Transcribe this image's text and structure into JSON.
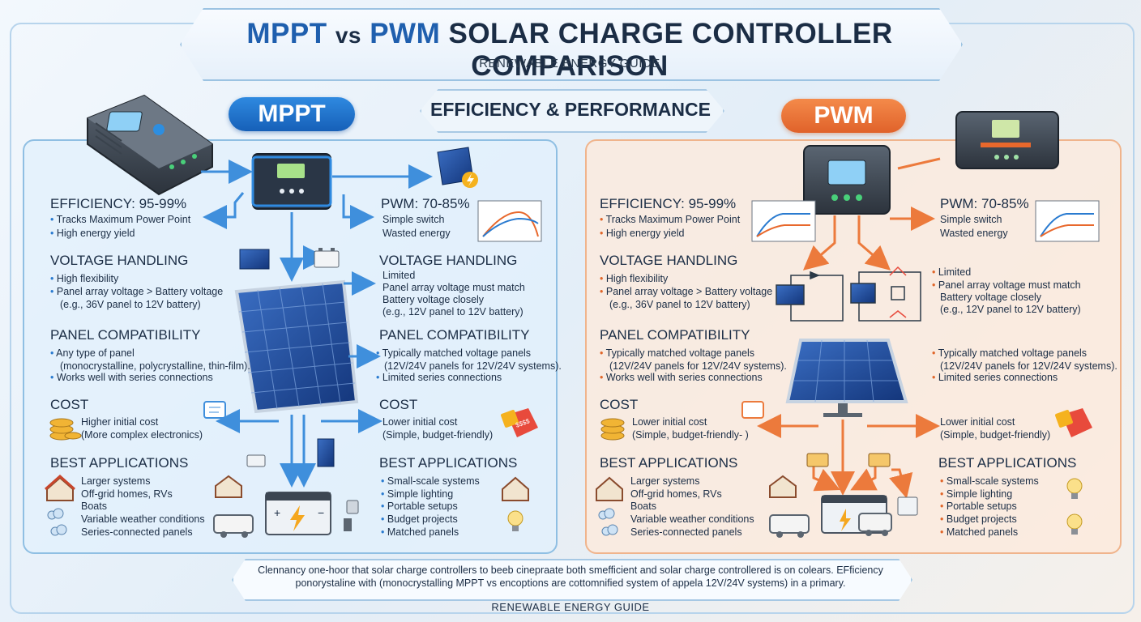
{
  "header": {
    "title_mppt": "MPPT",
    "title_vs": "vs",
    "title_pwm": "PWM",
    "title_rest": "SOLAR CHARGE CONTROLLER COMPARISON",
    "subtitle": "RENEWABLE ENERGY GUIDE"
  },
  "badges": {
    "mppt": "MPPT",
    "pwm": "PWM"
  },
  "banner": "EFFICIENCY & PERFORMANCE",
  "mppt_side": {
    "left": {
      "efficiency_title": "EFFICIENCY: 95-99%",
      "efficiency_items": [
        "Tracks Maximum Power Point",
        "High energy yield"
      ],
      "voltage_title": "VOLTAGE HANDLING",
      "voltage_items": [
        "High flexibility",
        "Panel array voltage > Battery voltage",
        "(e.g., 36V panel to 12V battery)"
      ],
      "panel_title": "PANEL COMPATIBILITY",
      "panel_items": [
        "Any type of panel",
        "(monocrystalline, polycrystalline, thin-film).",
        "Works well with series connections"
      ],
      "cost_title": "COST",
      "cost_items": [
        "Higher initial cost",
        "(More complex electronics)"
      ],
      "apps_title": "BEST APPLICATIONS",
      "apps_items": [
        "Larger systems",
        "Off-grid homes, RVs",
        "Boats",
        "Variable weather conditions",
        "Series-connected panels"
      ]
    },
    "right": {
      "efficiency_title": "PWM: 70-85%",
      "efficiency_items": [
        "Simple switch",
        "Wasted energy"
      ],
      "voltage_title": "VOLTAGE HANDLING",
      "voltage_items": [
        "Limited",
        "Panel array voltage must match",
        "Battery voltage closely",
        "(e.g., 12V panel to 12V battery)"
      ],
      "panel_title": "PANEL COMPATIBILITY",
      "panel_items": [
        "Typically matched voltage panels",
        "(12V/24V panels for 12V/24V systems).",
        "Limited series connections"
      ],
      "cost_title": "COST",
      "cost_items": [
        "Lower initial cost",
        "(Simple, budget-friendly)"
      ],
      "apps_title": "BEST APPLICATIONS",
      "apps_items": [
        "Small-scale systems",
        "Simple lighting",
        "Portable setups",
        "Budget projects",
        "Matched panels"
      ]
    }
  },
  "pwm_side": {
    "left": {
      "efficiency_title": "EFFICIENCY: 95-99%",
      "efficiency_items": [
        "Tracks Maximum Power Point",
        "High energy yield"
      ],
      "voltage_title": "VOLTAGE HANDLING",
      "voltage_items": [
        "High flexibility",
        "Panel array voltage > Battery voltage",
        "(e.g., 36V panel to 12V battery)"
      ],
      "panel_title": "PANEL COMPATIBILITY",
      "panel_items": [
        "Typically matched voltage panels",
        "(12V/24V panels for 12V/24V systems).",
        "Works well with series connections"
      ],
      "cost_title": "COST",
      "cost_items": [
        "Lower initial cost",
        "(Simple, budget-friendly- )"
      ],
      "apps_title": "BEST APPLICATIONS",
      "apps_items": [
        "Larger systems",
        "Off-grid homes, RVs",
        "Boats",
        "Variable weather conditions",
        "Series-connected panels"
      ]
    },
    "right": {
      "efficiency_title": "PWM: 70-85%",
      "efficiency_items": [
        "Simple switch",
        "Wasted energy"
      ],
      "voltage_items": [
        "Limited",
        "Panel array voltage must match",
        "Battery voltage closely",
        "(e.g., 12V panel to 12V battery)"
      ],
      "panel_items": [
        "Typically matched voltage panels",
        "(12V/24V panels for 12V/24V systems).",
        "Limited series connections"
      ],
      "cost_items": [
        "Lower initial cost",
        "(Simple, budget-friendly)"
      ],
      "apps_title": "BEST APPLICATIONS",
      "apps_items": [
        "Small-scale systems",
        "Simple lighting",
        "Portable setups",
        "Budget projects",
        "Matched panels"
      ]
    }
  },
  "price_tag": "$$$$",
  "footer": {
    "line1": "Clennancy one-hoor that solar charge controllers to beeb cinepraate both smefficient and solar charge controllered is on colears. EFficiency",
    "line2": "ponorystaline with (monocrystalling MPPT vs encoptions are cottomnified system of appela 12V/24V systems) in a primary.",
    "guide": "RENEWABLE ENERGY GUIDE"
  },
  "colors": {
    "mppt_accent": "#1f6fc8",
    "pwm_accent": "#e8682c",
    "text": "#1b2d45"
  },
  "icons": [
    "controller-icon",
    "solar-panel-icon",
    "battery-icon",
    "coins-icon",
    "price-tag-icon",
    "house-icon",
    "rv-icon",
    "cloud-icon",
    "light-bulb-icon",
    "efficiency-curve-icon",
    "circuit-icon",
    "chat-bubble-icon"
  ]
}
